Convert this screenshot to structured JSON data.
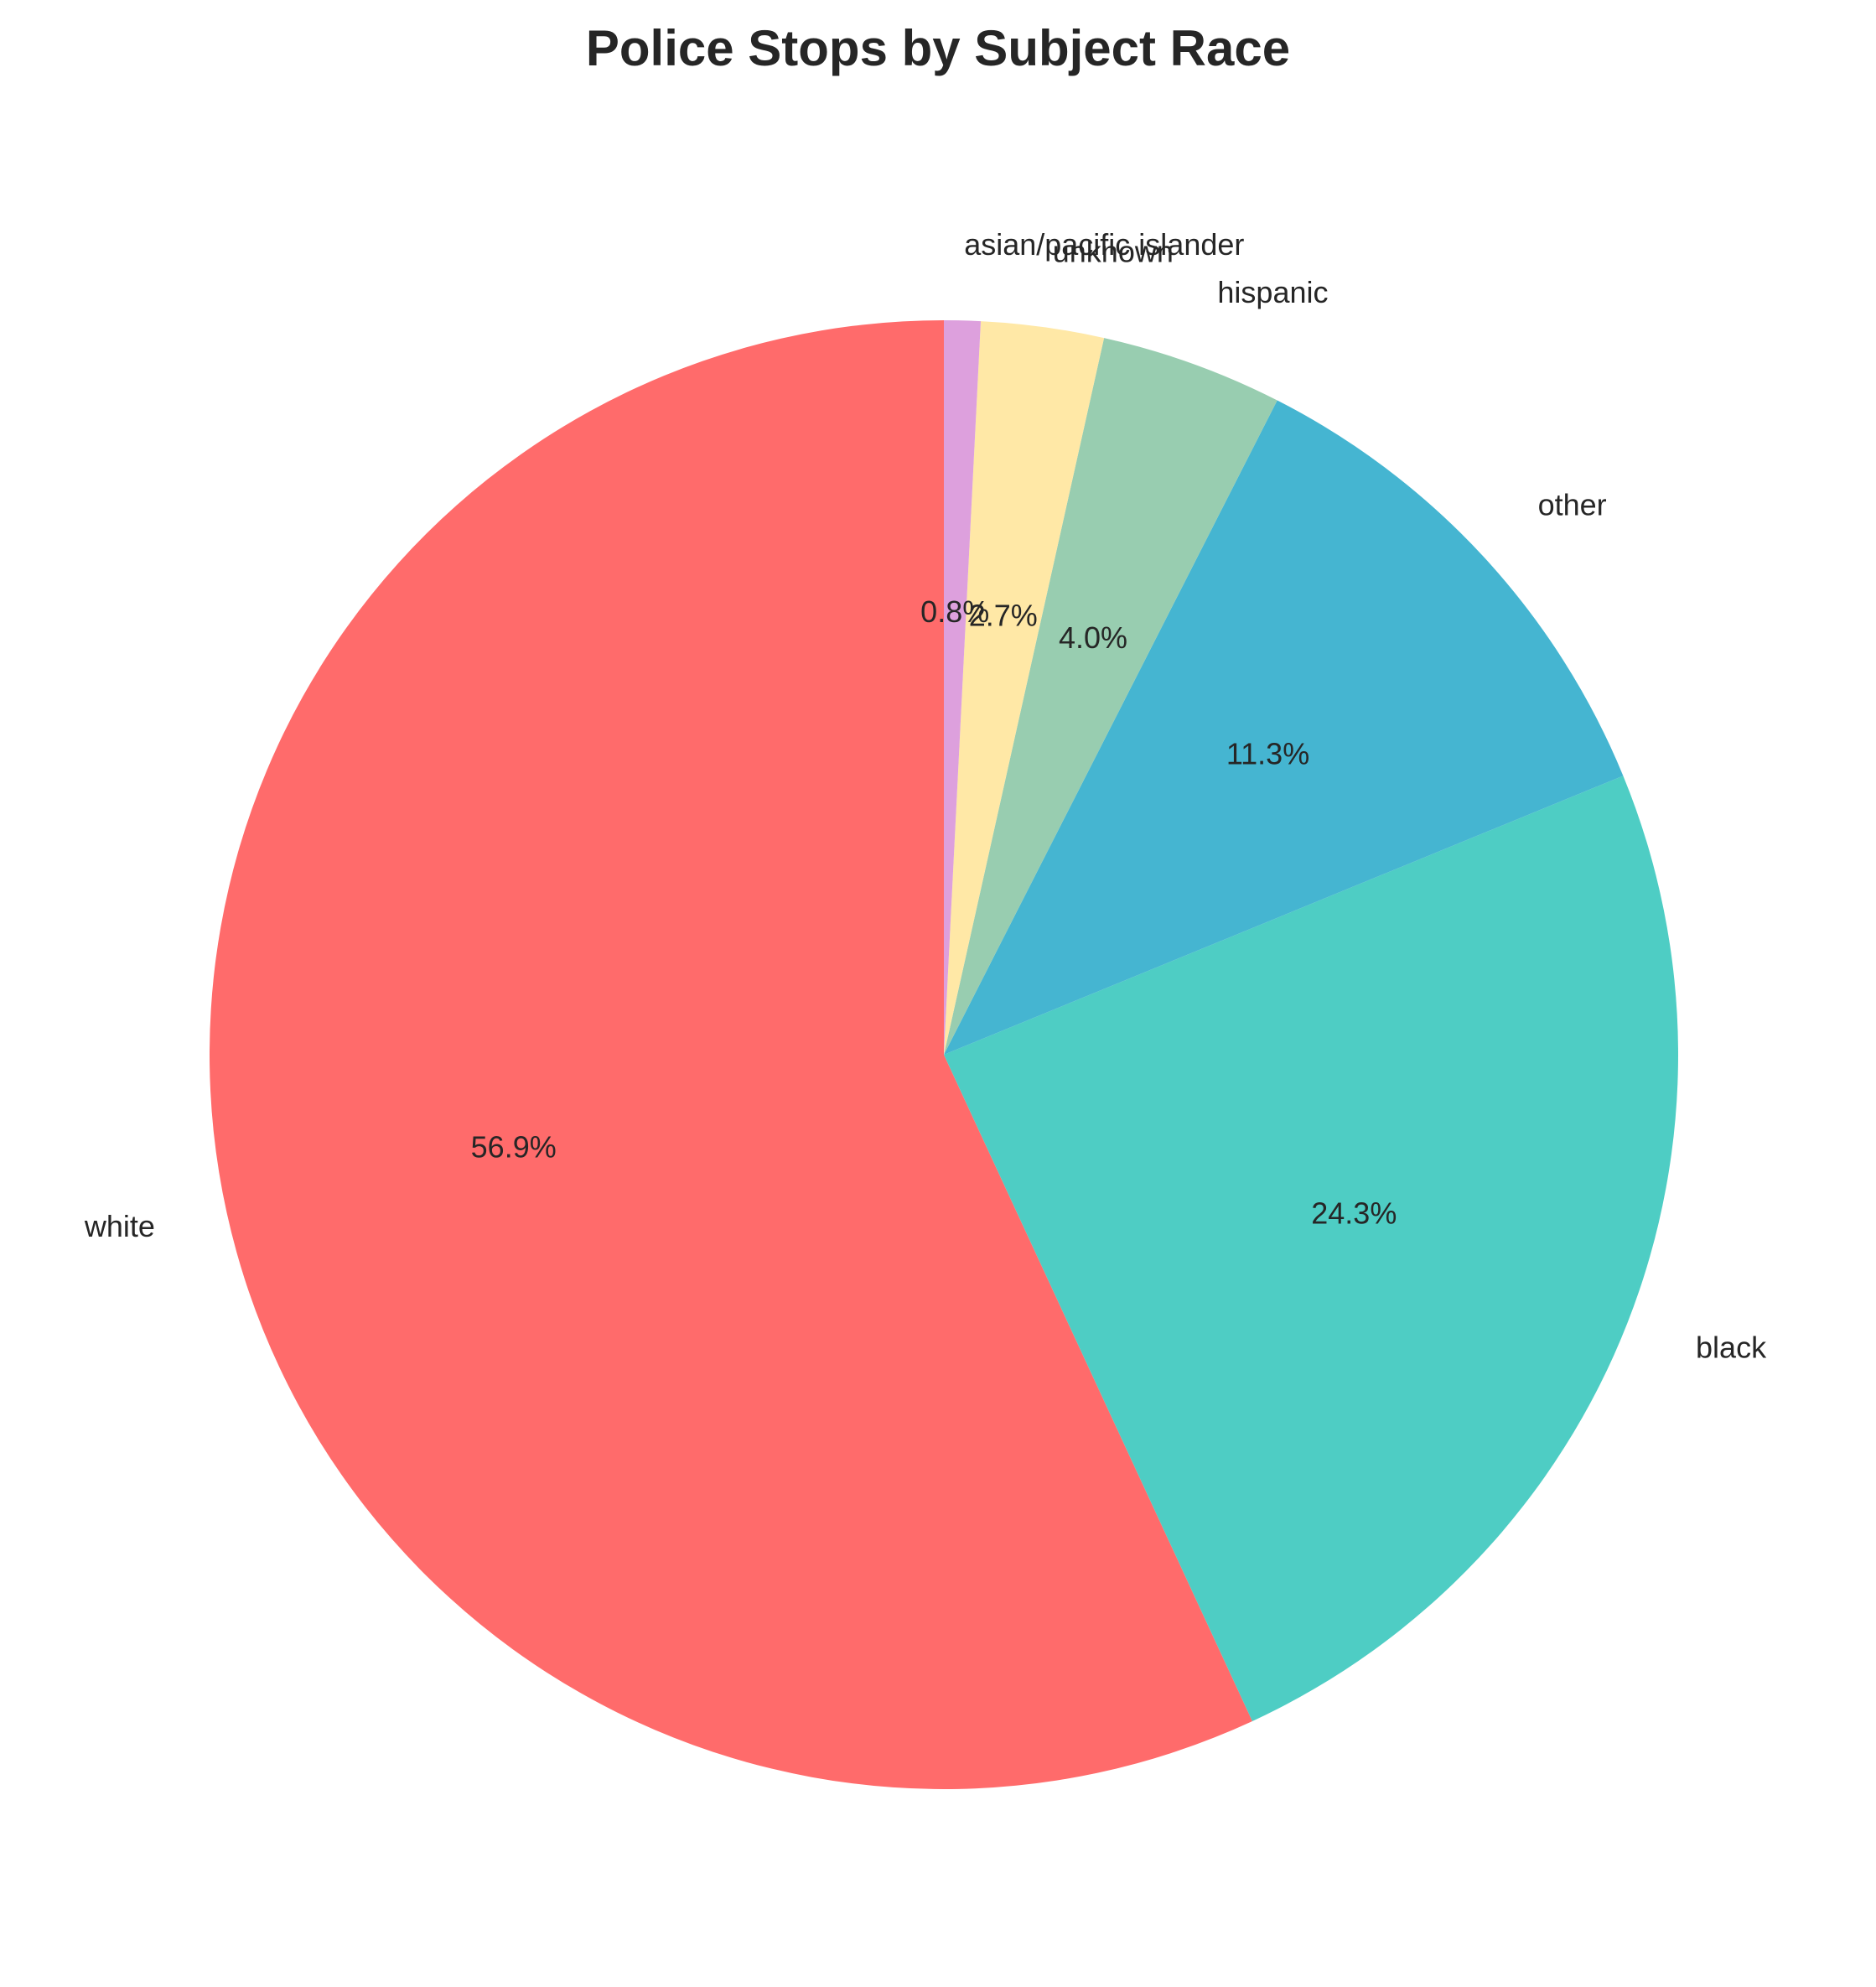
{
  "chart_data": {
    "type": "pie",
    "title": "Police Stops by Subject Race",
    "start_angle_deg": 90,
    "direction": "counterclockwise",
    "slices": [
      {
        "label": "white",
        "value": 56.9,
        "pct_text": "56.9%",
        "color": "#FF6B6B"
      },
      {
        "label": "black",
        "value": 24.3,
        "pct_text": "24.3%",
        "color": "#4ECDC4"
      },
      {
        "label": "other",
        "value": 11.3,
        "pct_text": "11.3%",
        "color": "#45B5D1"
      },
      {
        "label": "hispanic",
        "value": 4.0,
        "pct_text": "4.0%",
        "color": "#98CDB0"
      },
      {
        "label": "unknown",
        "value": 2.7,
        "pct_text": "2.7%",
        "color": "#FFE8A6"
      },
      {
        "label": "asian/pacific islander",
        "value": 0.8,
        "pct_text": "0.8%",
        "color": "#DDA0DD"
      }
    ]
  }
}
